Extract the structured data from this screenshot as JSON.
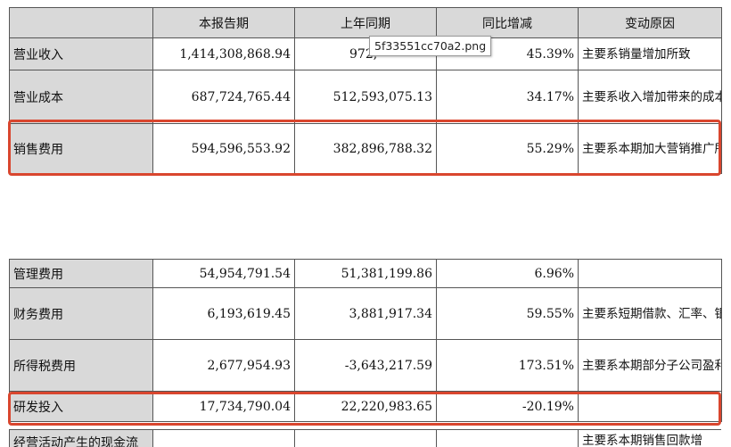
{
  "headers": [
    "",
    "本报告期",
    "上年同期",
    "同比增减",
    "变动原因"
  ],
  "table_top": [
    {
      "item": "营业收入",
      "current": "1,414,308,868.94",
      "prior": "972,",
      "change": "45.39%",
      "reason": "主要系销量增加所致"
    },
    {
      "item": "营业成本",
      "current": "687,724,765.44",
      "prior": "512,593,075.13",
      "change": "34.17%",
      "reason": "主要系收入增加带来的成本增加所致"
    },
    {
      "item": "销售费用",
      "current": "594,596,553.92",
      "prior": "382,896,788.32",
      "change": "55.29%",
      "reason": "主要系本期加大营销推广所致"
    }
  ],
  "table_bottom": [
    {
      "item": "管理费用",
      "current": "54,954,791.54",
      "prior": "51,381,199.86",
      "change": "6.96%",
      "reason": ""
    },
    {
      "item": "财务费用",
      "current": "6,193,619.45",
      "prior": "3,881,917.34",
      "change": "59.55%",
      "reason": "主要系短期借款、汇率、银行手续费变动所致"
    },
    {
      "item": "所得税费用",
      "current": "2,677,954.93",
      "prior": "-3,643,217.59",
      "change": "173.51%",
      "reason": "主要系本期部分子公司盈利所致"
    },
    {
      "item": "研发投入",
      "current": "17,734,790.04",
      "prior": "22,220,983.65",
      "change": "-20.19%",
      "reason": ""
    }
  ],
  "cut_row": {
    "item": "经营活动产生的现金流",
    "reason": "主要系本期销售回款增"
  },
  "tooltip": "5f33551cc70a2.png",
  "highlight_color": "#d9462e",
  "header_bg": "#d9d9d9"
}
